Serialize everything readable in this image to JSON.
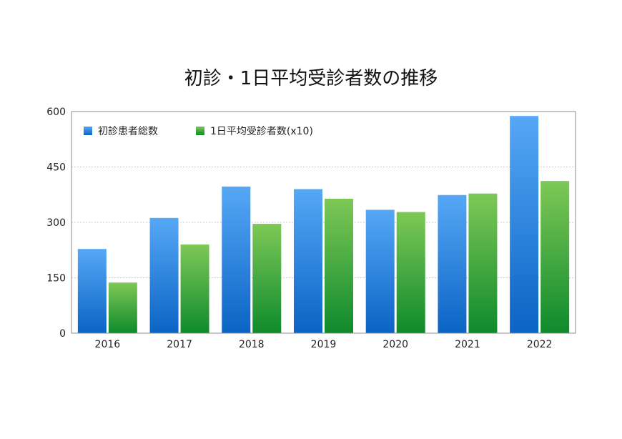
{
  "chart_data": {
    "type": "bar",
    "title": "初診・1日平均受診者数の推移",
    "xlabel": "",
    "ylabel": "",
    "categories": [
      "2016",
      "2017",
      "2018",
      "2019",
      "2020",
      "2021",
      "2022"
    ],
    "series": [
      {
        "name": "初診患者総数",
        "values": [
          228,
          312,
          397,
          390,
          334,
          374,
          588
        ],
        "color_top": "#56a8f6",
        "color_bottom": "#0b63c4"
      },
      {
        "name": "1日平均受診者数(x10)",
        "values": [
          137,
          240,
          296,
          364,
          328,
          378,
          412
        ],
        "color_top": "#7ec856",
        "color_bottom": "#0e8a2c"
      }
    ],
    "ylim": [
      0,
      600
    ],
    "yticks": [
      0,
      150,
      300,
      450,
      600
    ],
    "grid": true,
    "legend_position": "top-left"
  }
}
